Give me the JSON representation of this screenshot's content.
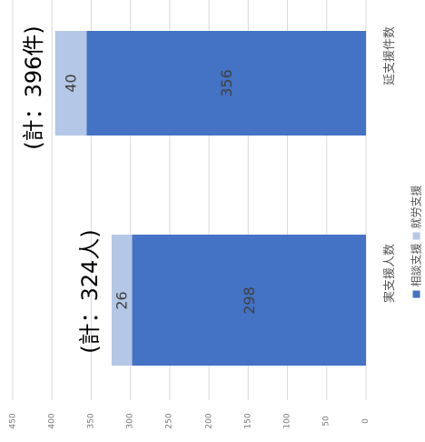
{
  "chart_data": {
    "type": "bar",
    "orientation": "horizontal",
    "stacked": true,
    "categories": [
      "実支援人数",
      "延支援件数"
    ],
    "series": [
      {
        "name": "相談支援",
        "values": [
          298,
          356
        ],
        "color": "#4472C4"
      },
      {
        "name": "就労支援",
        "values": [
          26,
          40
        ],
        "color": "#B4C7E7"
      }
    ],
    "totals": [
      "(計：324人)",
      "(計：396件)"
    ],
    "xlim": [
      0,
      450
    ],
    "ticks": [
      0,
      50,
      100,
      150,
      200,
      250,
      300,
      350,
      400,
      450
    ],
    "grid": true,
    "legend_position": "bottom"
  }
}
